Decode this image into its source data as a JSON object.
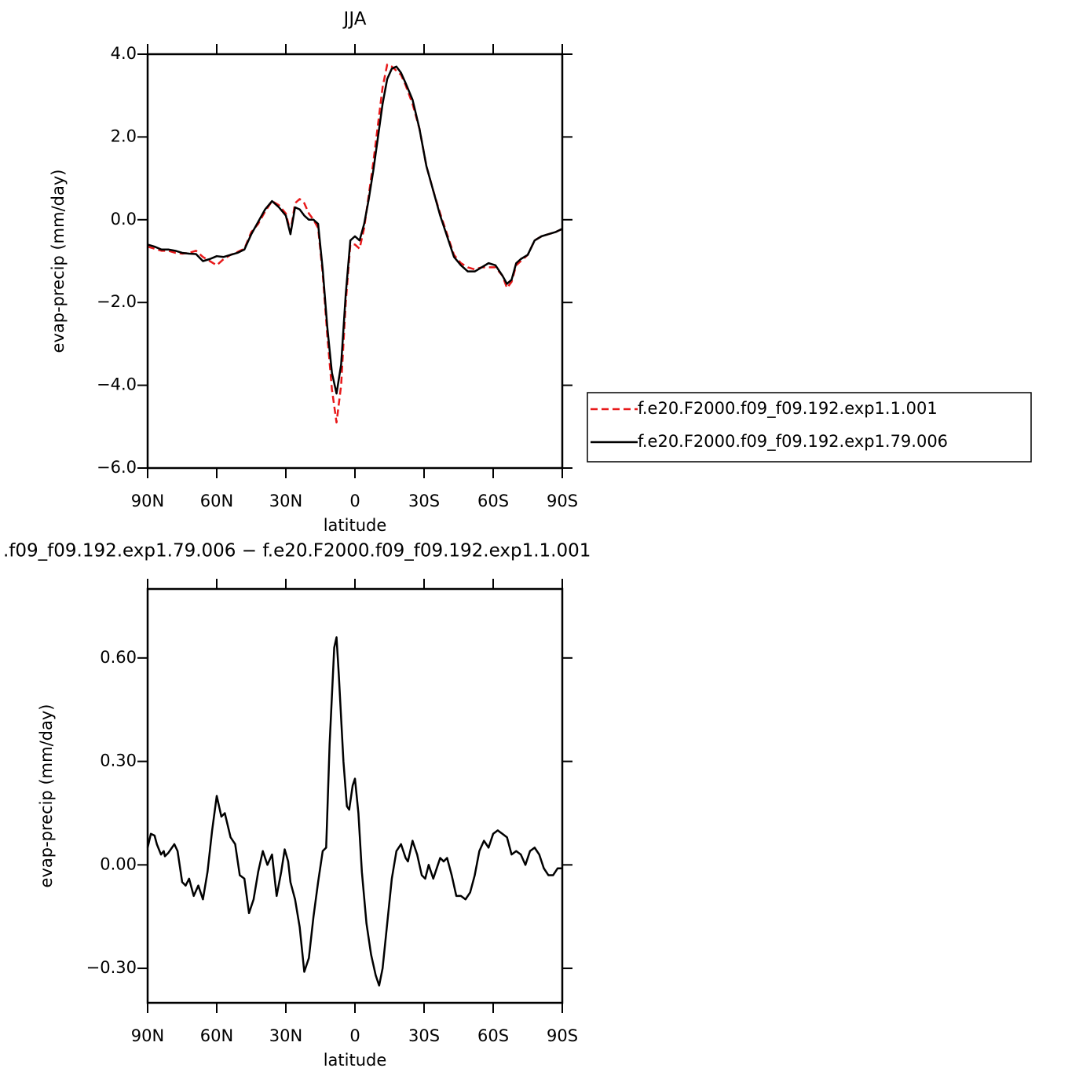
{
  "chart_data": [
    {
      "type": "line",
      "title": "JJA",
      "xlabel": "latitude",
      "ylabel": "evap-precip (mm/day)",
      "x": [
        90,
        87,
        84,
        81,
        78,
        75,
        72,
        69,
        66,
        63,
        60,
        57,
        54,
        51,
        48,
        45,
        42,
        39,
        36,
        33,
        30,
        28,
        26,
        24,
        22,
        20,
        18,
        16,
        14,
        12,
        10,
        8,
        6,
        4,
        2,
        0,
        -2,
        -4,
        -6,
        -8,
        -10,
        -12,
        -14,
        -16,
        -18,
        -20,
        -22,
        -25,
        -28,
        -31,
        -34,
        -37,
        -40,
        -43,
        -46,
        -49,
        -52,
        -55,
        -58,
        -61,
        -64,
        -66,
        -68,
        -70,
        -72,
        -75,
        -78,
        -81,
        -84,
        -87,
        -90
      ],
      "series": [
        {
          "name": "f.e20.F2000.f09_f09.192.exp1.1.001",
          "color": "#e8191a",
          "dash": true,
          "values": [
            -0.65,
            -0.7,
            -0.75,
            -0.75,
            -0.8,
            -0.82,
            -0.8,
            -0.75,
            -0.9,
            -1.0,
            -1.1,
            -0.95,
            -0.85,
            -0.78,
            -0.7,
            -0.3,
            -0.1,
            0.2,
            0.45,
            0.35,
            0.15,
            -0.3,
            0.4,
            0.5,
            0.4,
            0.15,
            0.0,
            -0.2,
            -1.3,
            -2.8,
            -4.1,
            -4.9,
            -4.0,
            -2.0,
            -0.6,
            -0.6,
            -0.7,
            -0.2,
            0.6,
            1.4,
            2.3,
            3.2,
            3.75,
            3.7,
            3.6,
            3.5,
            3.25,
            2.8,
            2.2,
            1.3,
            0.7,
            0.15,
            -0.35,
            -0.85,
            -1.05,
            -1.15,
            -1.2,
            -1.15,
            -1.15,
            -1.15,
            -1.35,
            -1.65,
            -1.5,
            -1.1,
            -1.0,
            -0.85,
            -0.5,
            -0.4,
            -0.35,
            -0.3,
            -0.22
          ]
        },
        {
          "name": "f.e20.F2000.f09_f09.192.exp1.79.006",
          "color": "#000000",
          "dash": false,
          "values": [
            -0.6,
            -0.65,
            -0.72,
            -0.72,
            -0.75,
            -0.8,
            -0.82,
            -0.83,
            -1.0,
            -0.95,
            -0.88,
            -0.9,
            -0.85,
            -0.8,
            -0.72,
            -0.35,
            -0.05,
            0.25,
            0.45,
            0.3,
            0.1,
            -0.35,
            0.3,
            0.25,
            0.1,
            0.0,
            0.0,
            -0.1,
            -1.2,
            -2.6,
            -3.7,
            -4.2,
            -3.5,
            -1.8,
            -0.5,
            -0.4,
            -0.5,
            -0.1,
            0.5,
            1.2,
            2.0,
            2.8,
            3.4,
            3.65,
            3.7,
            3.55,
            3.3,
            2.9,
            2.2,
            1.3,
            0.7,
            0.1,
            -0.4,
            -0.9,
            -1.1,
            -1.25,
            -1.25,
            -1.15,
            -1.05,
            -1.1,
            -1.35,
            -1.55,
            -1.45,
            -1.05,
            -0.95,
            -0.85,
            -0.5,
            -0.4,
            -0.35,
            -0.3,
            -0.22
          ]
        }
      ],
      "xlim": [
        90,
        -90
      ],
      "xticks": [
        {
          "value": 90,
          "label": "90N"
        },
        {
          "value": 60,
          "label": "60N"
        },
        {
          "value": 30,
          "label": "30N"
        },
        0,
        {
          "value": -30,
          "label": "30S"
        },
        {
          "value": -60,
          "label": "60S"
        },
        {
          "value": -90,
          "label": "90S"
        }
      ],
      "ylim": [
        -6,
        4
      ],
      "yticks": [
        {
          "value": 4,
          "label": "4.0"
        },
        {
          "value": 2,
          "label": "2.0"
        },
        {
          "value": 0,
          "label": "0.0"
        },
        {
          "value": -2,
          "label": "−2.0"
        },
        {
          "value": -4,
          "label": "−4.0"
        },
        {
          "value": -6,
          "label": "−6.0"
        }
      ],
      "legend": "right"
    },
    {
      "type": "line",
      "title": ".f09_f09.192.exp1.79.006 − f.e20.F2000.f09_f09.192.exp1.1.001",
      "xlabel": "latitude",
      "ylabel": "evap-precip (mm/day)",
      "x": [
        90,
        88.6,
        87,
        86,
        84.2,
        83,
        82.5,
        81,
        78.4,
        77,
        75,
        73.5,
        72,
        70,
        68,
        66,
        64,
        62,
        60,
        58,
        56.5,
        54,
        52,
        50,
        48,
        46,
        44,
        42,
        40,
        38,
        36,
        34,
        32,
        30.5,
        29,
        28,
        26,
        24,
        22,
        20,
        18,
        16,
        14,
        12.5,
        11,
        9,
        8,
        7,
        5,
        3.5,
        2.5,
        1,
        0,
        -1.5,
        -3,
        -5,
        -7,
        -9,
        -10.5,
        -12,
        -14,
        -16,
        -18,
        -20,
        -22,
        -23,
        -25,
        -27,
        -29,
        -30.5,
        -32,
        -34,
        -36,
        -37,
        -38.5,
        -40,
        -42,
        -44,
        -46,
        -48,
        -50,
        -52,
        -54,
        -56,
        -58,
        -60,
        -62,
        -64,
        -66,
        -68,
        -70,
        -72,
        -74,
        -76,
        -78,
        -80,
        -82,
        -84,
        -86,
        -88,
        -90
      ],
      "series": [
        {
          "color": "#000000",
          "dash": false,
          "values": [
            0.05,
            0.09,
            0.085,
            0.06,
            0.03,
            0.04,
            0.025,
            0.035,
            0.06,
            0.04,
            -0.05,
            -0.06,
            -0.04,
            -0.09,
            -0.06,
            -0.1,
            -0.02,
            0.1,
            0.2,
            0.14,
            0.15,
            0.08,
            0.06,
            -0.03,
            -0.04,
            -0.14,
            -0.1,
            -0.02,
            0.04,
            0.0,
            0.03,
            -0.09,
            -0.02,
            0.045,
            0.01,
            -0.05,
            -0.1,
            -0.18,
            -0.31,
            -0.27,
            -0.15,
            -0.05,
            0.04,
            0.05,
            0.35,
            0.63,
            0.66,
            0.55,
            0.3,
            0.17,
            0.16,
            0.23,
            0.25,
            0.15,
            -0.02,
            -0.17,
            -0.26,
            -0.32,
            -0.35,
            -0.3,
            -0.17,
            -0.04,
            0.04,
            0.06,
            0.02,
            0.01,
            0.07,
            0.03,
            -0.03,
            -0.04,
            0.0,
            -0.04,
            0.0,
            0.02,
            0.01,
            0.02,
            -0.03,
            -0.09,
            -0.09,
            -0.1,
            -0.08,
            -0.03,
            0.04,
            0.07,
            0.05,
            0.09,
            0.1,
            0.09,
            0.08,
            0.03,
            0.04,
            0.03,
            0.0,
            0.04,
            0.05,
            0.03,
            -0.01,
            -0.03,
            -0.03,
            -0.01,
            -0.01
          ]
        }
      ],
      "xlim": [
        90,
        -90
      ],
      "xticks": [
        {
          "value": 90,
          "label": "90N"
        },
        {
          "value": 60,
          "label": "60N"
        },
        {
          "value": 30,
          "label": "30N"
        },
        0,
        {
          "value": -30,
          "label": "30S"
        },
        {
          "value": -60,
          "label": "60S"
        },
        {
          "value": -90,
          "label": "90S"
        }
      ],
      "ylim": [
        -0.4,
        0.8
      ],
      "yticks": [
        {
          "value": 0.6,
          "label": "0.60"
        },
        {
          "value": 0.3,
          "label": "0.30"
        },
        {
          "value": 0,
          "label": "0.00"
        },
        {
          "value": -0.3,
          "label": "−0.30"
        }
      ]
    }
  ]
}
